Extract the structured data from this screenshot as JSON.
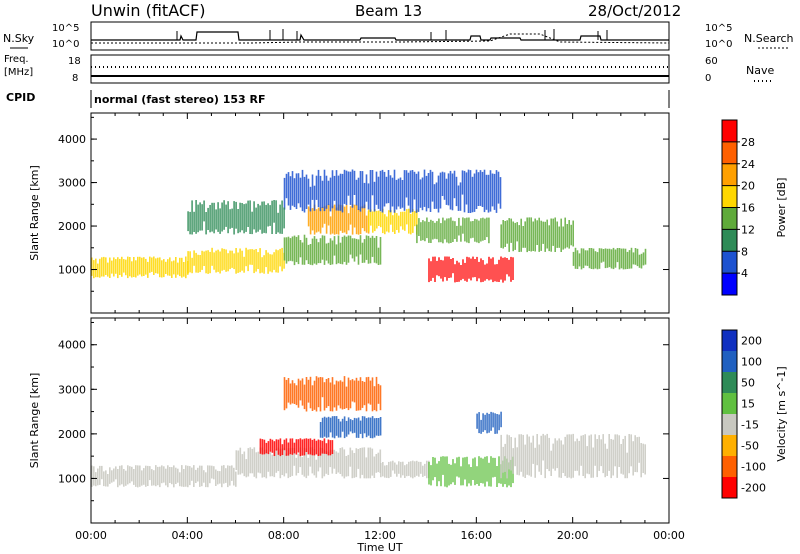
{
  "header": {
    "station": "Unwin (fitACF)",
    "beam": "Beam 13",
    "date": "28/Oct/2012"
  },
  "noise_panel": {
    "left_label": "N.Sky",
    "right_label": "N.Search",
    "ticks": [
      "10^5",
      "10^0"
    ]
  },
  "freq_panel": {
    "left_label_1": "Freq.",
    "left_label_2": "[MHz]",
    "left_ticks": [
      "18",
      "8"
    ],
    "right_label": "Nave",
    "right_ticks": [
      "60",
      "0"
    ]
  },
  "cpid": {
    "label": "CPID",
    "value": "normal (fast stereo) 153 RF"
  },
  "chart_data": [
    {
      "type": "heatmap",
      "title": "",
      "ylabel": "Slant Range [km]",
      "xlabel": "",
      "ylim": [
        0,
        4600
      ],
      "yticks": [
        "1000",
        "2000",
        "3000",
        "4000"
      ],
      "xlim": [
        0,
        24
      ],
      "colorbar": {
        "label": "Power [dB]",
        "ticks": [
          "4",
          "8",
          "12",
          "16",
          "20",
          "24",
          "28"
        ],
        "range": [
          0,
          32
        ],
        "colors": [
          "#0000ff",
          "#1d52d0",
          "#2e8b57",
          "#5faa3a",
          "#ffd700",
          "#ffa000",
          "#ff6000",
          "#ff0000"
        ]
      },
      "bands": [
        {
          "t": [
            0.0,
            4.0
          ],
          "r": [
            800,
            1300
          ],
          "v": 18
        },
        {
          "t": [
            4.0,
            8.0
          ],
          "r": [
            900,
            1500
          ],
          "v": 16
        },
        {
          "t": [
            8.0,
            12.0
          ],
          "r": [
            1100,
            1800
          ],
          "v": 14
        },
        {
          "t": [
            9.0,
            11.5
          ],
          "r": [
            1800,
            2500
          ],
          "v": 22
        },
        {
          "t": [
            11.5,
            13.5
          ],
          "r": [
            1800,
            2400
          ],
          "v": 16
        },
        {
          "t": [
            13.5,
            16.5
          ],
          "r": [
            1600,
            2200
          ],
          "v": 12
        },
        {
          "t": [
            14.0,
            17.5
          ],
          "r": [
            700,
            1300
          ],
          "v": 28
        },
        {
          "t": [
            17.0,
            20.0
          ],
          "r": [
            1400,
            2200
          ],
          "v": 14
        },
        {
          "t": [
            20.0,
            23.0
          ],
          "r": [
            1000,
            1500
          ],
          "v": 12
        },
        {
          "t": [
            8.0,
            17.0
          ],
          "r": [
            2300,
            3300
          ],
          "v": 6
        },
        {
          "t": [
            4.0,
            8.0
          ],
          "r": [
            1800,
            2600
          ],
          "v": 8
        }
      ]
    },
    {
      "type": "heatmap",
      "title": "",
      "ylabel": "Slant Range [km]",
      "xlabel": "Time UT",
      "ylim": [
        0,
        4600
      ],
      "yticks": [
        "1000",
        "2000",
        "3000",
        "4000"
      ],
      "xlim": [
        0,
        24
      ],
      "xticks": [
        "00:00",
        "04:00",
        "08:00",
        "12:00",
        "16:00",
        "20:00",
        "00:00"
      ],
      "colorbar": {
        "label": "Velocity [m s^-1]",
        "ticks": [
          "200",
          "100",
          "50",
          "15",
          "-15",
          "-50",
          "-100",
          "-200"
        ],
        "colors": [
          "#1030c0",
          "#2060c0",
          "#2e8b57",
          "#60c040",
          "#c8c8c0",
          "#ffb000",
          "#ff6000",
          "#ff0000"
        ]
      },
      "bands": [
        {
          "t": [
            0.0,
            6.0
          ],
          "r": [
            800,
            1300
          ],
          "v": 0
        },
        {
          "t": [
            6.0,
            12.0
          ],
          "r": [
            1000,
            1700
          ],
          "v": 0
        },
        {
          "t": [
            7.0,
            10.0
          ],
          "r": [
            1500,
            1900
          ],
          "v": -150
        },
        {
          "t": [
            9.5,
            12.0
          ],
          "r": [
            1900,
            2400
          ],
          "v": 180
        },
        {
          "t": [
            12.0,
            14.0
          ],
          "r": [
            1000,
            1400
          ],
          "v": 0
        },
        {
          "t": [
            14.0,
            17.5
          ],
          "r": [
            800,
            1500
          ],
          "v": 30
        },
        {
          "t": [
            16.0,
            17.0
          ],
          "r": [
            2000,
            2500
          ],
          "v": 100
        },
        {
          "t": [
            17.0,
            23.0
          ],
          "r": [
            1000,
            2000
          ],
          "v": 0
        },
        {
          "t": [
            8.0,
            12.0
          ],
          "r": [
            2500,
            3300
          ],
          "v": -60
        }
      ]
    }
  ],
  "colors": {
    "axis": "#000000",
    "background": "#ffffff"
  }
}
